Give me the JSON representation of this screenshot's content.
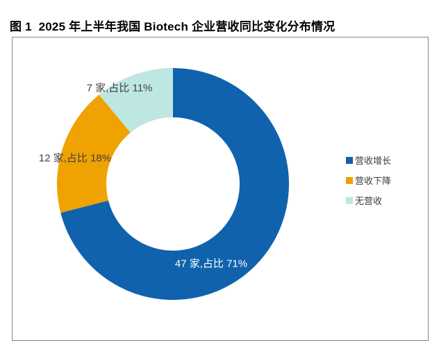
{
  "chart_data": {
    "type": "pie",
    "subtype": "donut",
    "title": "图 1  2025 年上半年我国 Biotech 企业营收同比变化分布情况",
    "unit": "家",
    "legend_position": "right",
    "start_angle_deg": 0,
    "direction": "clockwise",
    "segments": [
      {
        "name": "营收增长",
        "count": 47,
        "percent": 71,
        "label": "47 家,占比 71%",
        "color": "#1062AC",
        "label_color": "#FFFFFF"
      },
      {
        "name": "营收下降",
        "count": 12,
        "percent": 18,
        "label": "12 家,占比 18%",
        "color": "#F0A202",
        "label_color": "#404040"
      },
      {
        "name": "无营收",
        "count": 7,
        "percent": 11,
        "label": "7 家,占比 11%",
        "color": "#BEE7E2",
        "label_color": "#404040"
      }
    ]
  }
}
